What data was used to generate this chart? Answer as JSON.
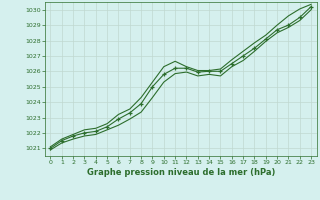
{
  "x": [
    0,
    1,
    2,
    3,
    4,
    5,
    6,
    7,
    8,
    9,
    10,
    11,
    12,
    13,
    14,
    15,
    16,
    17,
    18,
    19,
    20,
    21,
    22,
    23
  ],
  "line_avg": [
    1021.0,
    1021.5,
    1021.8,
    1022.0,
    1022.1,
    1022.4,
    1022.9,
    1023.3,
    1023.9,
    1025.0,
    1025.8,
    1026.2,
    1026.2,
    1025.95,
    1026.0,
    1026.0,
    1026.5,
    1027.0,
    1027.5,
    1028.1,
    1028.7,
    1029.0,
    1029.5,
    1030.2
  ],
  "line_max": [
    1021.1,
    1021.6,
    1021.9,
    1022.2,
    1022.3,
    1022.6,
    1023.2,
    1023.55,
    1024.3,
    1025.3,
    1026.3,
    1026.65,
    1026.3,
    1026.05,
    1026.05,
    1026.15,
    1026.75,
    1027.3,
    1027.85,
    1028.35,
    1029.0,
    1029.6,
    1030.05,
    1030.35
  ],
  "line_min": [
    1020.9,
    1021.35,
    1021.6,
    1021.8,
    1021.9,
    1022.2,
    1022.5,
    1022.9,
    1023.35,
    1024.3,
    1025.3,
    1025.85,
    1025.95,
    1025.7,
    1025.8,
    1025.7,
    1026.3,
    1026.7,
    1027.3,
    1027.95,
    1028.5,
    1028.85,
    1029.3,
    1030.0
  ],
  "line_color": "#2d6e2d",
  "background_color": "#d5f0ee",
  "grid_color": "#c0d8d0",
  "xlabel": "Graphe pression niveau de la mer (hPa)",
  "xlabel_color": "#2d6e2d",
  "tick_color": "#2d6e2d",
  "ylim": [
    1020.5,
    1030.5
  ],
  "yticks": [
    1021,
    1022,
    1023,
    1024,
    1025,
    1026,
    1027,
    1028,
    1029,
    1030
  ],
  "xticks": [
    0,
    1,
    2,
    3,
    4,
    5,
    6,
    7,
    8,
    9,
    10,
    11,
    12,
    13,
    14,
    15,
    16,
    17,
    18,
    19,
    20,
    21,
    22,
    23
  ],
  "xlim": [
    -0.5,
    23.5
  ]
}
